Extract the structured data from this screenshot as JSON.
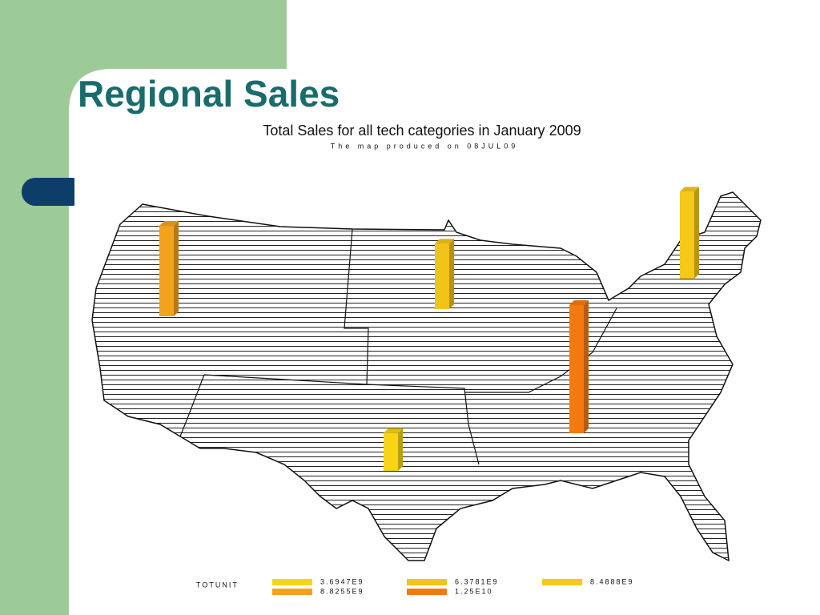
{
  "header": {
    "title": "Regional Sales"
  },
  "map": {
    "title": "Total Sales for all tech categories in January 2009",
    "subtitle": "The map produced on 08JUL09",
    "legend": {
      "title": "TOTUNIT",
      "items": [
        {
          "value": 3694700000,
          "label": "3.6947E9",
          "color": "#f7d417"
        },
        {
          "value": 8825500000,
          "label": "8.8255E9",
          "color": "#f3a21c"
        },
        {
          "value": 6378100000,
          "label": "6.3781E9",
          "color": "#f2c318"
        },
        {
          "value": 12500000000,
          "label": "1.25E10",
          "color": "#f47a10"
        },
        {
          "value": 8488800000,
          "label": "8.4888E9",
          "color": "#f5c81a"
        }
      ]
    },
    "bars": [
      1,
      2,
      4,
      3,
      0
    ]
  }
}
